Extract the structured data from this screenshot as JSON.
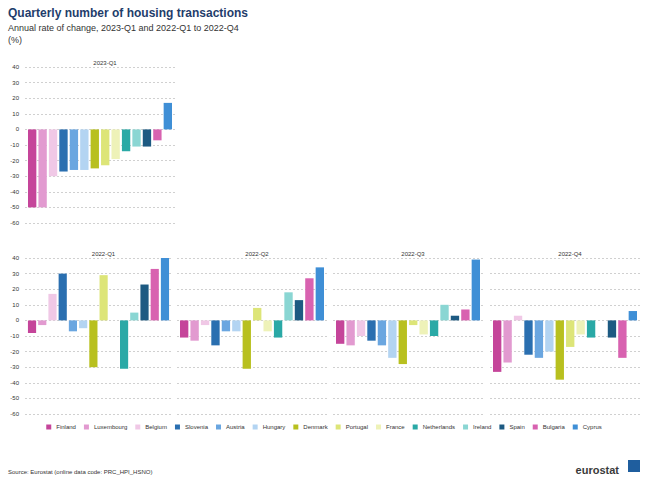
{
  "title": "Quarterly number of housing transactions",
  "subtitle": "Annual rate of change, 2023-Q1 and 2022-Q1 to 2022-Q4",
  "unit": "(%)",
  "source": "Source: Eurostat (online data code: PRC_HPI_HSNO)",
  "logo": "eurostat",
  "legend": "bottom",
  "chart_data": [
    {
      "type": "bar",
      "title": "2023-Q1",
      "categories": [
        "Finland",
        "Luxembourg",
        "Belgium",
        "Slovenia",
        "Austria",
        "Hungary",
        "Denmark",
        "Portugal",
        "France",
        "Netherlands",
        "Ireland",
        "Spain",
        "Bulgaria",
        "Cyprus"
      ],
      "values": [
        -50,
        -50,
        -30,
        -27,
        -26,
        -26,
        -25,
        -23,
        -19,
        -14,
        -11,
        -11,
        -7,
        17
      ],
      "colors": [
        "#c5459a",
        "#e29ad0",
        "#f0c8e6",
        "#2a6fb0",
        "#6aa6e0",
        "#b3d4f2",
        "#b8c01f",
        "#dde578",
        "#eef2b8",
        "#2aa9a6",
        "#8ad6d3",
        "#1d5a82",
        "#d862b0",
        "#3f8fd6"
      ],
      "ylim": [
        -60,
        40
      ],
      "yticks": [
        -60,
        -50,
        -40,
        -30,
        -20,
        -10,
        0,
        10,
        20,
        30,
        40
      ],
      "grid": true,
      "tick_labels": "y"
    },
    {
      "type": "bar",
      "title": "2022-Q1",
      "categories": [
        "Finland",
        "Luxembourg",
        "Belgium",
        "Slovenia",
        "Austria",
        "Hungary",
        "Denmark",
        "Portugal",
        "France",
        "Netherlands",
        "Ireland",
        "Spain",
        "Bulgaria",
        "Cyprus"
      ],
      "values": [
        -8,
        -3,
        17,
        30,
        -7,
        -5,
        -30,
        29,
        null,
        -31,
        5,
        23,
        33,
        40
      ],
      "colors": [
        "#c5459a",
        "#e29ad0",
        "#f0c8e6",
        "#2a6fb0",
        "#6aa6e0",
        "#b3d4f2",
        "#b8c01f",
        "#dde578",
        "#eef2b8",
        "#2aa9a6",
        "#8ad6d3",
        "#1d5a82",
        "#d862b0",
        "#3f8fd6"
      ],
      "ylim": [
        -60,
        40
      ],
      "yticks": [
        -60,
        -50,
        -40,
        -30,
        -20,
        -10,
        0,
        10,
        20,
        30,
        40
      ],
      "grid": true,
      "tick_labels": "y"
    },
    {
      "type": "bar",
      "title": "2022-Q2",
      "categories": [
        "Finland",
        "Luxembourg",
        "Belgium",
        "Slovenia",
        "Austria",
        "Hungary",
        "Denmark",
        "Portugal",
        "France",
        "Netherlands",
        "Ireland",
        "Spain",
        "Bulgaria",
        "Cyprus"
      ],
      "values": [
        -11,
        -13,
        -3,
        -16,
        -7,
        -7,
        -31,
        8,
        -7,
        -11,
        18,
        13,
        27,
        34
      ],
      "colors": [
        "#c5459a",
        "#e29ad0",
        "#f0c8e6",
        "#2a6fb0",
        "#6aa6e0",
        "#b3d4f2",
        "#b8c01f",
        "#dde578",
        "#eef2b8",
        "#2aa9a6",
        "#8ad6d3",
        "#1d5a82",
        "#d862b0",
        "#3f8fd6"
      ],
      "ylim": [
        -60,
        40
      ],
      "yticks": [
        -60,
        -50,
        -40,
        -30,
        -20,
        -10,
        0,
        10,
        20,
        30,
        40
      ],
      "grid": true,
      "tick_labels": false
    },
    {
      "type": "bar",
      "title": "2022-Q3",
      "categories": [
        "Finland",
        "Luxembourg",
        "Belgium",
        "Slovenia",
        "Austria",
        "Hungary",
        "Denmark",
        "Portugal",
        "France",
        "Netherlands",
        "Ireland",
        "Spain",
        "Bulgaria",
        "Cyprus"
      ],
      "values": [
        -15,
        -16,
        -10,
        -13,
        -16,
        -24,
        -28,
        -3,
        -9,
        -10,
        10,
        3,
        7,
        39
      ],
      "colors": [
        "#c5459a",
        "#e29ad0",
        "#f0c8e6",
        "#2a6fb0",
        "#6aa6e0",
        "#b3d4f2",
        "#b8c01f",
        "#dde578",
        "#eef2b8",
        "#2aa9a6",
        "#8ad6d3",
        "#1d5a82",
        "#d862b0",
        "#3f8fd6"
      ],
      "ylim": [
        -60,
        40
      ],
      "yticks": [
        -60,
        -50,
        -40,
        -30,
        -20,
        -10,
        0,
        10,
        20,
        30,
        40
      ],
      "grid": true,
      "tick_labels": false
    },
    {
      "type": "bar",
      "title": "2022-Q4",
      "categories": [
        "Finland",
        "Luxembourg",
        "Belgium",
        "Slovenia",
        "Austria",
        "Hungary",
        "Denmark",
        "Portugal",
        "France",
        "Netherlands",
        "Ireland",
        "Spain",
        "Bulgaria",
        "Cyprus"
      ],
      "values": [
        -33,
        -27,
        3,
        -22,
        -24,
        -20,
        -38,
        -17,
        -9,
        -11,
        null,
        -11,
        -24,
        6
      ],
      "colors": [
        "#c5459a",
        "#e29ad0",
        "#f0c8e6",
        "#2a6fb0",
        "#6aa6e0",
        "#b3d4f2",
        "#b8c01f",
        "#dde578",
        "#eef2b8",
        "#2aa9a6",
        "#8ad6d3",
        "#1d5a82",
        "#d862b0",
        "#3f8fd6"
      ],
      "ylim": [
        -60,
        40
      ],
      "yticks": [
        -60,
        -50,
        -40,
        -30,
        -20,
        -10,
        0,
        10,
        20,
        30,
        40
      ],
      "grid": true,
      "tick_labels": false
    }
  ]
}
